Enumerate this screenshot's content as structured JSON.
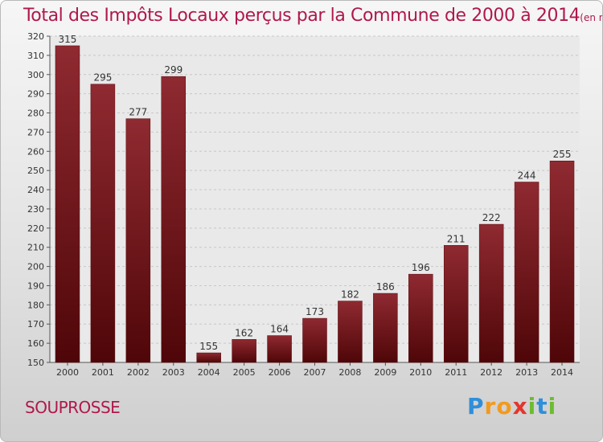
{
  "page": {
    "title_main": "Total des Impôts Locaux perçus par la Commune de 2000 à 2014",
    "title_unit": "(en milliers d'€)",
    "commune_name": "SOUPROSSE",
    "logo_letters": [
      "P",
      "r",
      "o",
      "x",
      "i",
      "t",
      "i"
    ]
  },
  "chart_data": {
    "type": "bar",
    "title": "Total des Impôts Locaux perçus par la Commune de 2000 à 2014",
    "unit": "(en milliers d'€)",
    "categories": [
      "2000",
      "2001",
      "2002",
      "2003",
      "2004",
      "2005",
      "2006",
      "2007",
      "2008",
      "2009",
      "2010",
      "2011",
      "2012",
      "2013",
      "2014"
    ],
    "values": [
      315,
      295,
      277,
      299,
      155,
      162,
      164,
      173,
      182,
      186,
      196,
      211,
      222,
      244,
      255
    ],
    "ylim": [
      150,
      320
    ],
    "yticks": [
      150,
      160,
      170,
      180,
      190,
      200,
      210,
      220,
      230,
      240,
      250,
      260,
      270,
      280,
      290,
      300,
      310,
      320
    ],
    "xlabel": "",
    "ylabel": "",
    "grid": true,
    "bar_color": "#7a1a1f",
    "bar_color_dark": "#4a0a0c",
    "data_labels": true
  }
}
